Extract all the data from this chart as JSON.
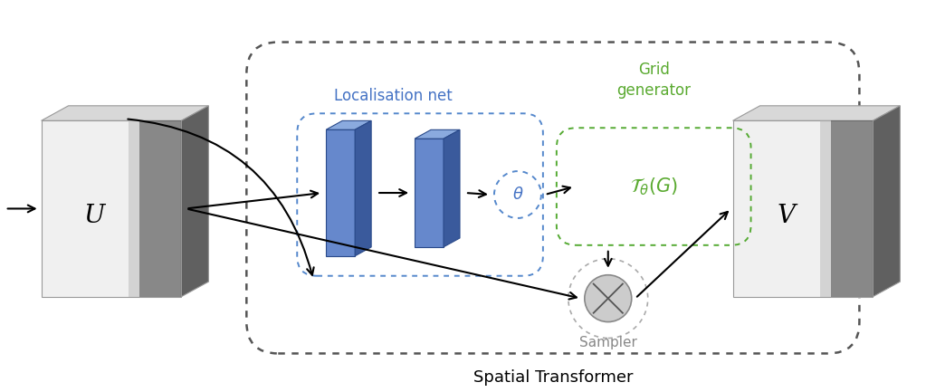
{
  "title": "Spatial Transformer",
  "title_fontsize": 13,
  "background_color": "#ffffff",
  "U_label": "U",
  "V_label": "V",
  "blue_label_color": "#4472c4",
  "green_label_color": "#5aaa30",
  "sampler_label_color": "#888888",
  "localisation_label": "Localisation net",
  "grid_gen_label": "Grid\ngenerator",
  "sampler_label": "Sampler",
  "blue_face": "#6688cc",
  "blue_side": "#3a5a9c",
  "blue_top": "#8aaade",
  "outer_box_color": "#555555",
  "loc_box_color": "#5588cc",
  "grid_box_color": "#55aa33",
  "sampler_box_color": "#aaaaaa"
}
